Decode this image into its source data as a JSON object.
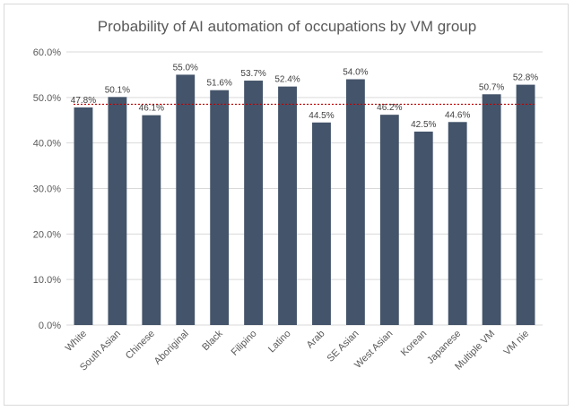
{
  "chart_data": {
    "type": "bar",
    "title": "Probability of AI automation of occupations by VM group",
    "categories": [
      "White",
      "South Asian",
      "Chinese",
      "Aboriginal",
      "Black",
      "Filipino",
      "Latino",
      "Arab",
      "SE Asian",
      "West Asian",
      "Korean",
      "Japanese",
      "Multiple VM",
      "VM nie"
    ],
    "values": [
      47.8,
      50.1,
      46.1,
      55.0,
      51.6,
      53.7,
      52.4,
      44.5,
      54.0,
      46.2,
      42.5,
      44.6,
      50.7,
      52.8
    ],
    "data_labels": [
      "47.8%",
      "50.1%",
      "46.1%",
      "55.0%",
      "51.6%",
      "53.7%",
      "52.4%",
      "44.5%",
      "54.0%",
      "46.2%",
      "42.5%",
      "44.6%",
      "50.7%",
      "52.8%"
    ],
    "ylim": [
      0,
      60
    ],
    "yticks": [
      0,
      10,
      20,
      30,
      40,
      50,
      60
    ],
    "ytick_labels": [
      "0.0%",
      "10.0%",
      "20.0%",
      "30.0%",
      "40.0%",
      "50.0%",
      "60.0%"
    ],
    "reference_line": 48.5,
    "bar_color": "#44546a",
    "reference_line_color": "#c00000",
    "grid": true,
    "xlabel": "",
    "ylabel": ""
  }
}
